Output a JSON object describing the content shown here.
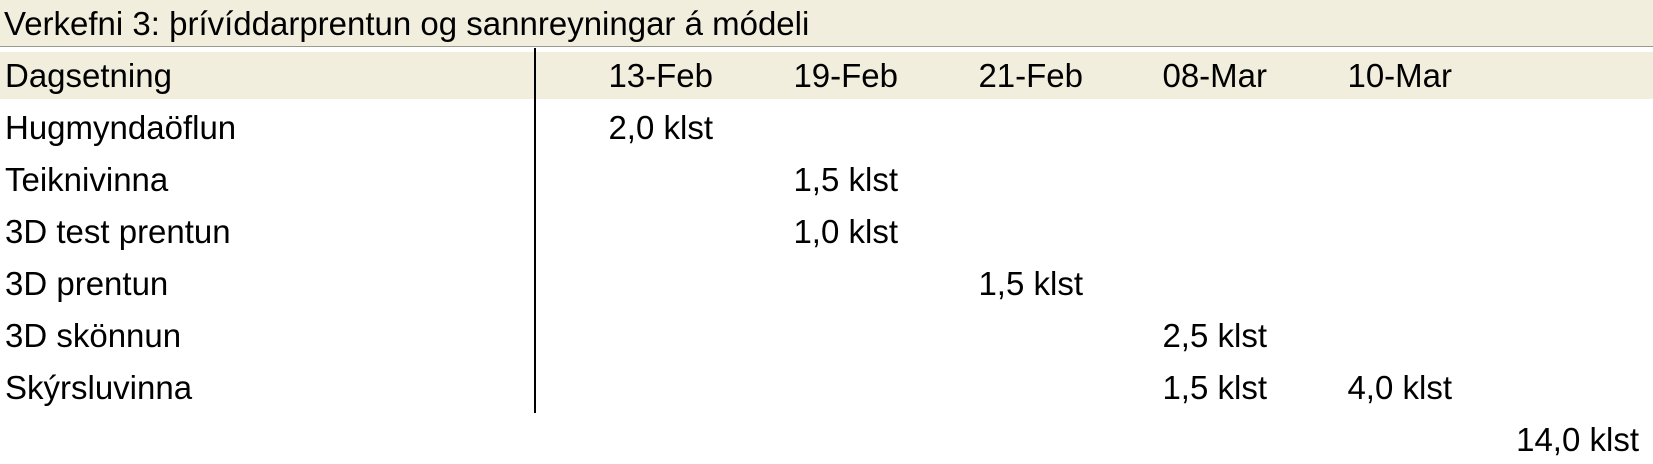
{
  "title": "Verkefni 3: þrívíddarprentun og sannreyningar á módeli",
  "table": {
    "header_label": "Dagsetning",
    "dates": [
      "13-Feb",
      "19-Feb",
      "21-Feb",
      "08-Mar",
      "10-Mar"
    ],
    "rows": [
      {
        "label": "Hugmyndaöflun",
        "values": [
          "2,0 klst",
          "",
          "",
          "",
          ""
        ]
      },
      {
        "label": "Teiknivinna",
        "values": [
          "",
          "1,5 klst",
          "",
          "",
          ""
        ]
      },
      {
        "label": "3D test prentun",
        "values": [
          "",
          "1,0 klst",
          "",
          "",
          ""
        ]
      },
      {
        "label": "3D prentun",
        "values": [
          "",
          "",
          "1,5 klst",
          "",
          ""
        ]
      },
      {
        "label": "3D skönnun",
        "values": [
          "",
          "",
          "",
          "2,5 klst",
          ""
        ]
      },
      {
        "label": "Skýrsluvinna",
        "values": [
          "",
          "",
          "",
          "1,5 klst",
          "4,0 klst"
        ]
      }
    ],
    "total": "14,0 klst"
  },
  "colors": {
    "header_background": "#f1eedd",
    "text": "#000000",
    "divider": "#000000"
  }
}
